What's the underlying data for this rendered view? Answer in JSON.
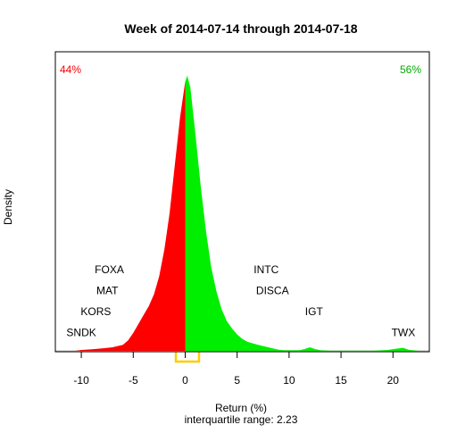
{
  "chart_data": {
    "type": "area",
    "title": "Week of 2014-07-14 through 2014-07-18",
    "xlabel": "Return (%)",
    "ylabel": "Density",
    "subtitle": "interquartile range: 2.23",
    "xlim": [
      -12.5,
      23.5
    ],
    "ylim": [
      0,
      1
    ],
    "x_ticks": [
      -10,
      -5,
      0,
      5,
      10,
      15,
      20
    ],
    "grid": false,
    "pct_negative": "44%",
    "pct_positive": "56%",
    "colors": {
      "negative": "#ff0000",
      "positive": "#00ee00",
      "iqr": "#ffcc00",
      "axis": "#000000",
      "baseline": "#bbbbbb"
    },
    "iqr_range": [
      -0.9,
      1.33
    ],
    "density": {
      "x": [
        -10.6,
        -10,
        -9,
        -8,
        -7,
        -6,
        -5.5,
        -5,
        -4.5,
        -4,
        -3.5,
        -3,
        -2.5,
        -2,
        -1.5,
        -1,
        -0.5,
        0,
        0.2,
        0.5,
        1,
        1.5,
        2,
        2.5,
        3,
        3.5,
        4,
        4.5,
        5,
        5.5,
        6,
        7,
        8,
        9,
        9.5,
        10,
        11,
        11.5,
        12,
        12.5,
        13,
        14,
        16,
        18,
        19.5,
        20.5,
        21,
        21.5,
        22.5
      ],
      "y": [
        0,
        0.003,
        0.005,
        0.008,
        0.012,
        0.02,
        0.035,
        0.06,
        0.09,
        0.12,
        0.15,
        0.19,
        0.25,
        0.34,
        0.46,
        0.62,
        0.78,
        0.9,
        0.92,
        0.88,
        0.72,
        0.55,
        0.4,
        0.28,
        0.2,
        0.14,
        0.1,
        0.075,
        0.055,
        0.04,
        0.03,
        0.02,
        0.012,
        0.004,
        0.002,
        0.002,
        0.002,
        0.006,
        0.012,
        0.006,
        0.002,
        0.001,
        0.001,
        0.001,
        0.003,
        0.008,
        0.01,
        0.004,
        0
      ]
    },
    "annotations": [
      {
        "label": "SNDK",
        "x": -10,
        "y": 0.05
      },
      {
        "label": "KORS",
        "x": -8.6,
        "y": 0.12
      },
      {
        "label": "MAT",
        "x": -7.5,
        "y": 0.19
      },
      {
        "label": "FOXA",
        "x": -7.3,
        "y": 0.26
      },
      {
        "label": "INTC",
        "x": 7.8,
        "y": 0.26
      },
      {
        "label": "DISCA",
        "x": 8.4,
        "y": 0.19
      },
      {
        "label": "IGT",
        "x": 12.4,
        "y": 0.12
      },
      {
        "label": "TWX",
        "x": 21,
        "y": 0.05
      }
    ]
  }
}
